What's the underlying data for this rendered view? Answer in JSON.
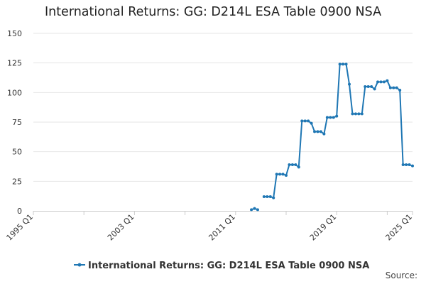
{
  "chart_data": {
    "type": "line",
    "title": "International Returns: GG: D214L ESA Table 0900 NSA",
    "xlabel": "",
    "ylabel": "",
    "source_label": "Source:",
    "ylim": [
      0,
      150
    ],
    "yticks": [
      0,
      25,
      50,
      75,
      100,
      125,
      150
    ],
    "x_range": [
      "1995 Q1",
      "2025 Q1"
    ],
    "x_tick_labels": [
      "1995 Q1",
      "2003 Q1",
      "2011 Q1",
      "2019 Q1",
      "2025 Q1"
    ],
    "legend_position": "bottom",
    "grid": "horizontal",
    "colors": {
      "series": "#1f77b4",
      "grid": "#e6e6e6",
      "axis": "#cccccc"
    },
    "series": [
      {
        "name": "International Returns: GG: D214L ESA Table 0900 NSA",
        "points": [
          [
            "2012 Q2",
            1
          ],
          [
            "2012 Q3",
            2
          ],
          [
            "2012 Q4",
            1
          ],
          [
            "2013 Q2",
            12
          ],
          [
            "2013 Q3",
            12
          ],
          [
            "2013 Q4",
            12
          ],
          [
            "2014 Q1",
            11
          ],
          [
            "2014 Q2",
            31
          ],
          [
            "2014 Q3",
            31
          ],
          [
            "2014 Q4",
            31
          ],
          [
            "2015 Q1",
            30
          ],
          [
            "2015 Q2",
            39
          ],
          [
            "2015 Q3",
            39
          ],
          [
            "2015 Q4",
            39
          ],
          [
            "2016 Q1",
            37
          ],
          [
            "2016 Q2",
            76
          ],
          [
            "2016 Q3",
            76
          ],
          [
            "2016 Q4",
            76
          ],
          [
            "2017 Q1",
            74
          ],
          [
            "2017 Q2",
            67
          ],
          [
            "2017 Q3",
            67
          ],
          [
            "2017 Q4",
            67
          ],
          [
            "2018 Q1",
            65
          ],
          [
            "2018 Q2",
            79
          ],
          [
            "2018 Q3",
            79
          ],
          [
            "2018 Q4",
            79
          ],
          [
            "2019 Q1",
            80
          ],
          [
            "2019 Q2",
            124
          ],
          [
            "2019 Q3",
            124
          ],
          [
            "2019 Q4",
            124
          ],
          [
            "2020 Q1",
            107
          ],
          [
            "2020 Q2",
            82
          ],
          [
            "2020 Q3",
            82
          ],
          [
            "2020 Q4",
            82
          ],
          [
            "2021 Q1",
            82
          ],
          [
            "2021 Q2",
            105
          ],
          [
            "2021 Q3",
            105
          ],
          [
            "2021 Q4",
            105
          ],
          [
            "2022 Q1",
            103
          ],
          [
            "2022 Q2",
            109
          ],
          [
            "2022 Q3",
            109
          ],
          [
            "2022 Q4",
            109
          ],
          [
            "2023 Q1",
            110
          ],
          [
            "2023 Q2",
            104
          ],
          [
            "2023 Q3",
            104
          ],
          [
            "2023 Q4",
            104
          ],
          [
            "2024 Q1",
            102
          ],
          [
            "2024 Q2",
            39
          ],
          [
            "2024 Q3",
            39
          ],
          [
            "2024 Q4",
            39
          ],
          [
            "2025 Q1",
            38
          ]
        ]
      }
    ]
  }
}
